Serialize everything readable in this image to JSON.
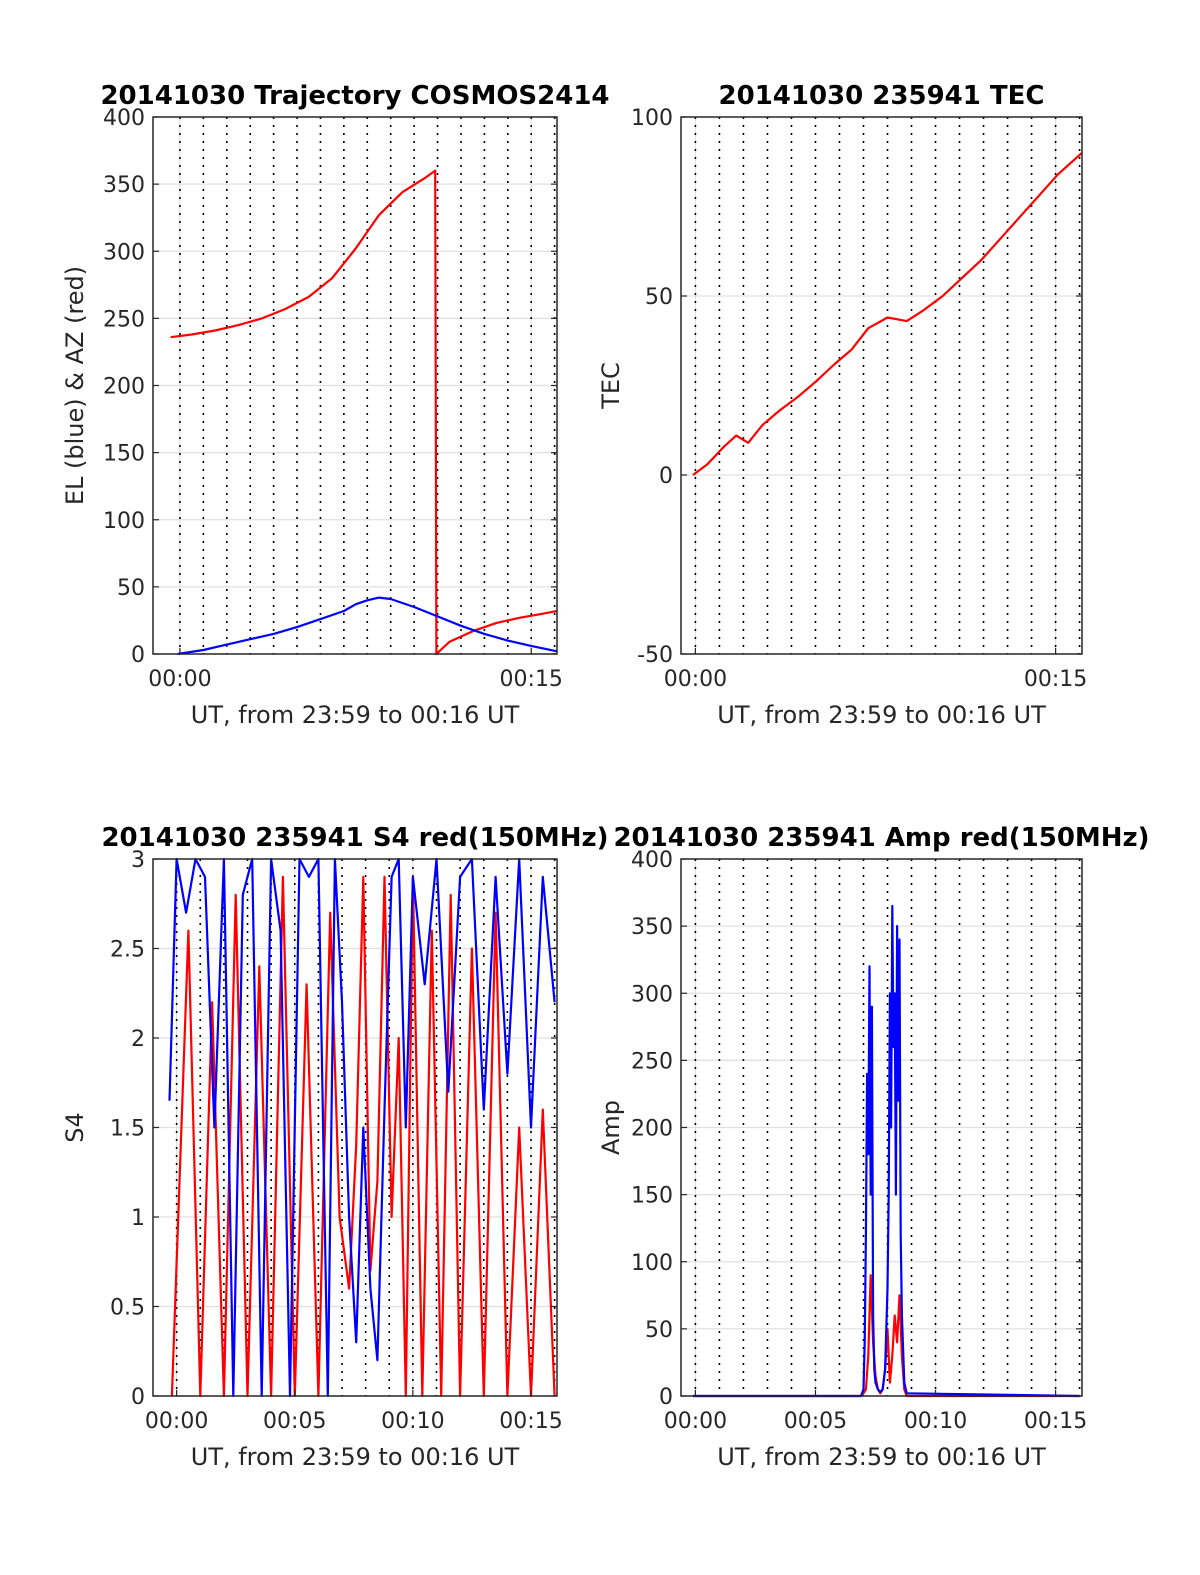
{
  "colors": {
    "series_red": "#ff0000",
    "series_blue": "#0000ff",
    "axis": "#262626",
    "grid": "#e0e0e0",
    "vline": "#000000"
  },
  "chart_data": [
    {
      "id": "trajectory",
      "type": "line",
      "title": "20141030 Trajectory COSMOS2414",
      "xlabel": "UT, from 23:59 to 00:16 UT",
      "ylabel": "EL (blue) & AZ (red)",
      "x_units": "minutes relative to 00:00 UT",
      "xlim": [
        -1.15,
        16.1
      ],
      "ylim": [
        0,
        400
      ],
      "yticks": [
        0,
        50,
        100,
        150,
        200,
        250,
        300,
        350,
        400
      ],
      "xticks": [
        {
          "value": 0,
          "label": "00:00"
        },
        {
          "value": 15,
          "label": "00:15"
        }
      ],
      "minute_markers": [
        0,
        1,
        2,
        3,
        4,
        5,
        6,
        7,
        8,
        9,
        10,
        11,
        12,
        13,
        14,
        15,
        16
      ],
      "grid": true,
      "series": [
        {
          "color": "red",
          "x": [
            -0.4,
            0.5,
            1.5,
            2.5,
            3.5,
            4.5,
            5.5,
            6.5,
            7.5,
            8.5,
            9.5,
            10.5,
            10.9,
            10.95,
            11.5,
            12.5,
            13.5,
            14.5,
            15.5,
            16.1
          ],
          "y": [
            236,
            238,
            241,
            245,
            250,
            257,
            266,
            280,
            302,
            327,
            344,
            355,
            360,
            0,
            9,
            17,
            23,
            27,
            30,
            32
          ]
        },
        {
          "color": "blue",
          "x": [
            -0.1,
            1,
            2,
            3,
            4,
            5,
            6,
            7,
            7.5,
            8,
            8.5,
            9,
            10,
            11,
            12,
            13,
            14,
            15,
            16.1
          ],
          "y": [
            0,
            3,
            7,
            11,
            15,
            20,
            26,
            32,
            37,
            40,
            42,
            41,
            35,
            28,
            21,
            15,
            10,
            6,
            2
          ]
        }
      ]
    },
    {
      "id": "tec",
      "type": "line",
      "title": "20141030 235941 TEC",
      "xlabel": "UT, from 23:59 to 00:16 UT",
      "ylabel": "TEC",
      "x_units": "minutes relative to 00:00 UT",
      "xlim": [
        -0.6,
        16.1
      ],
      "ylim": [
        -50,
        100
      ],
      "yticks": [
        -50,
        0,
        50,
        100
      ],
      "xticks": [
        {
          "value": 0,
          "label": "00:00"
        },
        {
          "value": 15,
          "label": "00:15"
        }
      ],
      "minute_markers": [
        0,
        1,
        2,
        3,
        4,
        5,
        6,
        7,
        8,
        9,
        10,
        11,
        12,
        13,
        14,
        15,
        16
      ],
      "grid": true,
      "series": [
        {
          "color": "red",
          "x": [
            -0.1,
            0.5,
            1.2,
            1.7,
            2.2,
            2.8,
            3.5,
            4.3,
            5.0,
            5.8,
            6.5,
            7.2,
            8.0,
            8.8,
            9.5,
            10.3,
            11.1,
            11.9,
            12.7,
            13.5,
            14.3,
            15.1,
            16.1
          ],
          "y": [
            0,
            3,
            8,
            11,
            9,
            14,
            18,
            22,
            26,
            31,
            35,
            41,
            44,
            43,
            46,
            50,
            55,
            60,
            66,
            72,
            78,
            84,
            90
          ]
        }
      ]
    },
    {
      "id": "s4",
      "type": "line",
      "title": "20141030 235941 S4 red(150MHz)",
      "xlabel": "UT, from 23:59 to 00:16 UT",
      "ylabel": "S4",
      "x_units": "minutes relative to 00:00 UT",
      "xlim": [
        -1.0,
        16.1
      ],
      "ylim": [
        0,
        3
      ],
      "yticks": [
        0,
        0.5,
        1,
        1.5,
        2,
        2.5,
        3
      ],
      "xticks": [
        {
          "value": 0,
          "label": "00:00"
        },
        {
          "value": 5,
          "label": "00:05"
        },
        {
          "value": 10,
          "label": "00:10"
        },
        {
          "value": 15,
          "label": "00:15"
        }
      ],
      "minute_markers": [
        0,
        1,
        2,
        3,
        4,
        5,
        6,
        7,
        8,
        9,
        10,
        11,
        12,
        13,
        14,
        15,
        16
      ],
      "grid": true,
      "series": [
        {
          "color": "red",
          "x": [
            -0.2,
            0.5,
            1.0,
            1.5,
            2.0,
            2.5,
            3.0,
            3.5,
            4.0,
            4.5,
            5.0,
            5.5,
            6.0,
            6.5,
            6.9,
            7.3,
            7.6,
            7.9,
            8.2,
            8.5,
            8.8,
            9.1,
            9.4,
            9.7,
            10.0,
            10.4,
            10.8,
            11.2,
            11.6,
            12.0,
            12.5,
            13.0,
            13.5,
            14.0,
            14.5,
            15.0,
            15.5,
            16.0
          ],
          "y": [
            0,
            2.6,
            0,
            2.2,
            0,
            2.8,
            0,
            2.4,
            0,
            2.9,
            0,
            2.3,
            0,
            2.7,
            1.0,
            0.6,
            1.4,
            2.9,
            0.7,
            1.2,
            2.9,
            1.0,
            2.0,
            0,
            2.9,
            0,
            2.6,
            0,
            2.8,
            0,
            2.5,
            0,
            2.7,
            0,
            1.5,
            0,
            1.6,
            0
          ]
        },
        {
          "color": "blue",
          "x": [
            -0.3,
            0.0,
            0.4,
            0.8,
            1.2,
            1.6,
            2.0,
            2.4,
            2.8,
            3.2,
            3.6,
            4.0,
            4.4,
            4.8,
            5.2,
            5.6,
            6.0,
            6.4,
            6.7,
            7.0,
            7.3,
            7.6,
            7.9,
            8.2,
            8.5,
            8.8,
            9.1,
            9.4,
            9.7,
            10.0,
            10.5,
            11.0,
            11.5,
            12.0,
            12.5,
            13.0,
            13.5,
            14.0,
            14.5,
            15.0,
            15.5,
            16.0
          ],
          "y": [
            1.65,
            3,
            2.7,
            3,
            2.9,
            1.5,
            3,
            0,
            2.8,
            3,
            0,
            3,
            2.6,
            0,
            3,
            2.9,
            3,
            0,
            3,
            2.2,
            1.0,
            0.3,
            1.5,
            0.6,
            0.2,
            1.6,
            2.9,
            3,
            1.5,
            2.9,
            2.3,
            3,
            1.7,
            2.9,
            3,
            1.6,
            2.9,
            1.8,
            3,
            1.5,
            2.9,
            2.2
          ]
        }
      ]
    },
    {
      "id": "amp",
      "type": "line",
      "title": "20141030 235941 Amp red(150MHz)",
      "xlabel": "UT, from 23:59 to 00:16 UT",
      "ylabel": "Amp",
      "x_units": "minutes relative to 00:00 UT",
      "xlim": [
        -0.6,
        16.1
      ],
      "ylim": [
        0,
        400
      ],
      "yticks": [
        0,
        50,
        100,
        150,
        200,
        250,
        300,
        350,
        400
      ],
      "xticks": [
        {
          "value": 0,
          "label": "00:00"
        },
        {
          "value": 5,
          "label": "00:05"
        },
        {
          "value": 10,
          "label": "00:10"
        },
        {
          "value": 15,
          "label": "00:15"
        }
      ],
      "minute_markers": [
        0,
        1,
        2,
        3,
        4,
        5,
        6,
        7,
        8,
        9,
        10,
        11,
        12,
        13,
        14,
        15,
        16
      ],
      "grid": true,
      "series": [
        {
          "color": "red",
          "x": [
            -0.1,
            6.9,
            7.0,
            7.1,
            7.2,
            7.3,
            7.4,
            7.5,
            7.6,
            7.7,
            7.8,
            7.9,
            8.0,
            8.1,
            8.2,
            8.3,
            8.4,
            8.5,
            8.6,
            8.7,
            8.8,
            16.0
          ],
          "y": [
            0,
            0,
            2,
            5,
            30,
            90,
            40,
            15,
            5,
            2,
            5,
            20,
            50,
            10,
            30,
            60,
            40,
            75,
            30,
            5,
            0,
            0
          ]
        },
        {
          "color": "blue",
          "x": [
            -0.1,
            6.9,
            7.0,
            7.05,
            7.1,
            7.15,
            7.2,
            7.25,
            7.3,
            7.35,
            7.4,
            7.45,
            7.5,
            7.6,
            7.7,
            7.8,
            7.9,
            8.0,
            8.05,
            8.1,
            8.15,
            8.2,
            8.25,
            8.3,
            8.35,
            8.4,
            8.45,
            8.5,
            8.55,
            8.6,
            8.7,
            8.8,
            16.0
          ],
          "y": [
            0,
            0,
            5,
            40,
            120,
            240,
            180,
            320,
            150,
            290,
            60,
            20,
            10,
            5,
            3,
            5,
            20,
            80,
            150,
            300,
            200,
            365,
            260,
            300,
            150,
            350,
            220,
            340,
            120,
            60,
            10,
            2,
            0
          ]
        }
      ]
    }
  ]
}
